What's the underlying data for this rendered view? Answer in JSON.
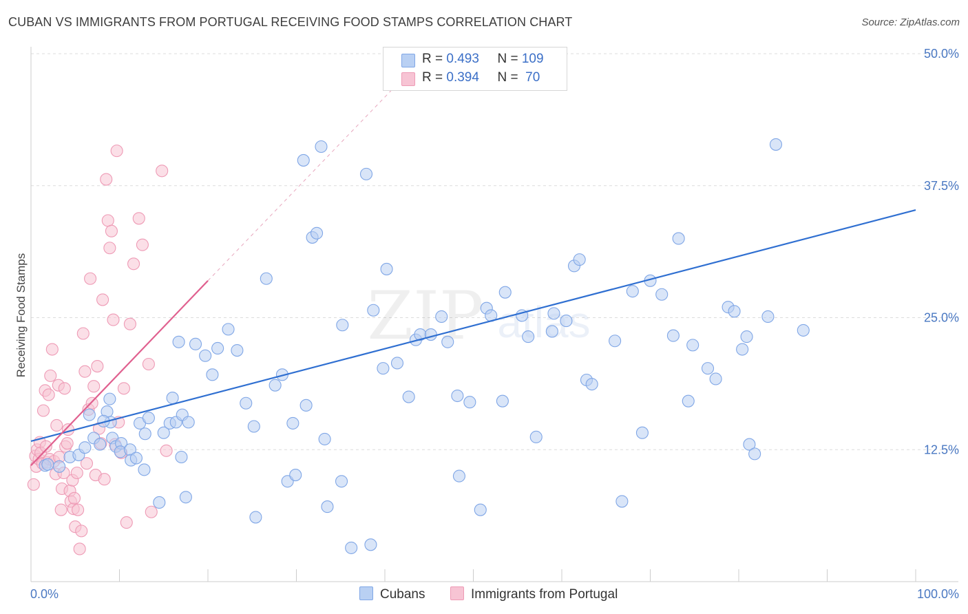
{
  "title": "CUBAN VS IMMIGRANTS FROM PORTUGAL RECEIVING FOOD STAMPS CORRELATION CHART",
  "source": "Source: ZipAtlas.com",
  "watermark": {
    "zip": "ZIP",
    "atlas": "atlas"
  },
  "legend": {
    "rows": [
      {
        "r_label": "R = ",
        "r_value": "0.493",
        "n_label": "N = ",
        "n_value": "109",
        "color": "#a8c6ef",
        "border": "#6f9be0"
      },
      {
        "r_label": "R = ",
        "r_value": "0.394",
        "n_label": "N = ",
        "n_value": " 70",
        "color": "#f6b8cc",
        "border": "#e98aa9"
      }
    ]
  },
  "bottom_legend": {
    "series1": "Cubans",
    "series2": "Immigrants from Portugal"
  },
  "chart_data": {
    "type": "scatter",
    "title": "CUBAN VS IMMIGRANTS FROM PORTUGAL RECEIVING FOOD STAMPS CORRELATION CHART",
    "xlabel": "",
    "ylabel": "Receiving Food Stamps",
    "xlim": [
      0,
      100
    ],
    "ylim": [
      0,
      50
    ],
    "x_tick_labels": [
      "0.0%",
      "100.0%"
    ],
    "y_ticks": [
      12.5,
      25.0,
      37.5,
      50.0
    ],
    "y_tick_labels": [
      "12.5%",
      "25.0%",
      "37.5%",
      "50.0%"
    ],
    "grid": true,
    "series": [
      {
        "name": "Cubans",
        "color": "#7fa6e6",
        "fill": "#b9d0f3",
        "trend": {
          "x": [
            0,
            100
          ],
          "y": [
            13.3,
            35.2
          ],
          "color": "#2f6fd1"
        },
        "points": [
          [
            1.6,
            11.0
          ],
          [
            1.9,
            11.1
          ],
          [
            3.2,
            10.9
          ],
          [
            4.4,
            11.8
          ],
          [
            5.4,
            12.0
          ],
          [
            6.1,
            12.7
          ],
          [
            7.1,
            13.6
          ],
          [
            6.6,
            15.8
          ],
          [
            7.8,
            13.0
          ],
          [
            8.6,
            16.1
          ],
          [
            9.0,
            15.1
          ],
          [
            8.9,
            17.3
          ],
          [
            9.2,
            13.6
          ],
          [
            8.2,
            15.2
          ],
          [
            9.6,
            12.8
          ],
          [
            10.2,
            13.1
          ],
          [
            10.1,
            12.3
          ],
          [
            11.2,
            12.5
          ],
          [
            11.3,
            11.5
          ],
          [
            11.9,
            11.7
          ],
          [
            12.3,
            15.0
          ],
          [
            12.8,
            10.6
          ],
          [
            12.9,
            14.0
          ],
          [
            13.3,
            15.5
          ],
          [
            14.5,
            7.5
          ],
          [
            15.0,
            14.1
          ],
          [
            15.7,
            15.0
          ],
          [
            16.0,
            17.4
          ],
          [
            16.4,
            15.1
          ],
          [
            16.7,
            22.7
          ],
          [
            17.0,
            11.8
          ],
          [
            17.1,
            15.8
          ],
          [
            17.5,
            8.0
          ],
          [
            17.8,
            15.1
          ],
          [
            18.6,
            22.5
          ],
          [
            19.7,
            21.4
          ],
          [
            20.5,
            19.6
          ],
          [
            21.1,
            22.1
          ],
          [
            22.3,
            23.9
          ],
          [
            23.3,
            21.9
          ],
          [
            24.3,
            16.9
          ],
          [
            25.2,
            14.7
          ],
          [
            25.4,
            6.1
          ],
          [
            26.6,
            28.7
          ],
          [
            27.6,
            18.6
          ],
          [
            28.4,
            19.6
          ],
          [
            29.0,
            9.5
          ],
          [
            29.6,
            15.0
          ],
          [
            29.9,
            10.1
          ],
          [
            30.8,
            39.9
          ],
          [
            31.1,
            16.7
          ],
          [
            31.8,
            32.6
          ],
          [
            32.3,
            33.0
          ],
          [
            32.8,
            41.2
          ],
          [
            33.2,
            13.5
          ],
          [
            33.5,
            7.1
          ],
          [
            35.1,
            9.5
          ],
          [
            35.2,
            24.3
          ],
          [
            36.2,
            3.2
          ],
          [
            37.9,
            38.6
          ],
          [
            38.4,
            3.5
          ],
          [
            38.7,
            25.7
          ],
          [
            39.8,
            20.2
          ],
          [
            40.2,
            29.6
          ],
          [
            41.4,
            20.7
          ],
          [
            42.7,
            17.5
          ],
          [
            43.5,
            22.9
          ],
          [
            44.0,
            23.4
          ],
          [
            45.2,
            23.4
          ],
          [
            46.4,
            25.1
          ],
          [
            47.1,
            22.7
          ],
          [
            48.2,
            17.6
          ],
          [
            48.4,
            10.0
          ],
          [
            49.6,
            17.0
          ],
          [
            50.8,
            6.8
          ],
          [
            51.5,
            25.9
          ],
          [
            52.0,
            25.2
          ],
          [
            53.3,
            17.1
          ],
          [
            53.6,
            27.4
          ],
          [
            55.5,
            25.2
          ],
          [
            56.2,
            23.2
          ],
          [
            57.1,
            13.7
          ],
          [
            58.9,
            23.7
          ],
          [
            59.1,
            25.4
          ],
          [
            60.5,
            24.7
          ],
          [
            61.4,
            29.9
          ],
          [
            62.0,
            30.5
          ],
          [
            62.8,
            19.1
          ],
          [
            63.4,
            18.7
          ],
          [
            66.0,
            22.8
          ],
          [
            66.8,
            7.6
          ],
          [
            68.0,
            27.5
          ],
          [
            69.1,
            14.1
          ],
          [
            70.0,
            28.5
          ],
          [
            71.3,
            27.2
          ],
          [
            72.6,
            23.3
          ],
          [
            73.2,
            32.5
          ],
          [
            74.3,
            17.1
          ],
          [
            74.8,
            22.4
          ],
          [
            76.5,
            20.2
          ],
          [
            77.4,
            19.2
          ],
          [
            78.8,
            26.0
          ],
          [
            79.5,
            25.6
          ],
          [
            80.4,
            22.0
          ],
          [
            80.9,
            23.2
          ],
          [
            81.2,
            13.0
          ],
          [
            81.8,
            12.1
          ],
          [
            83.3,
            25.1
          ],
          [
            84.2,
            41.4
          ],
          [
            87.3,
            23.8
          ]
        ]
      },
      {
        "name": "Immigrants from Portugal",
        "color": "#ee9ab5",
        "fill": "#f7c4d4",
        "trend": {
          "x": [
            0,
            20
          ],
          "y": [
            11.0,
            28.5
          ],
          "color": "#e0608f",
          "dashed_extension_to": [
            41.5,
            47.2
          ]
        },
        "points": [
          [
            0.3,
            9.2
          ],
          [
            0.5,
            11.9
          ],
          [
            0.6,
            10.9
          ],
          [
            0.7,
            12.5
          ],
          [
            0.9,
            11.6
          ],
          [
            1.0,
            13.2
          ],
          [
            1.1,
            12.2
          ],
          [
            1.3,
            11.2
          ],
          [
            1.4,
            16.2
          ],
          [
            1.6,
            18.1
          ],
          [
            1.7,
            12.8
          ],
          [
            1.8,
            11.3
          ],
          [
            2.0,
            17.7
          ],
          [
            2.1,
            11.6
          ],
          [
            2.2,
            19.5
          ],
          [
            2.4,
            22.0
          ],
          [
            2.6,
            11.4
          ],
          [
            2.8,
            10.2
          ],
          [
            2.9,
            14.8
          ],
          [
            3.1,
            18.6
          ],
          [
            3.2,
            11.8
          ],
          [
            3.4,
            6.8
          ],
          [
            3.5,
            8.8
          ],
          [
            3.7,
            10.3
          ],
          [
            3.8,
            18.3
          ],
          [
            3.9,
            12.8
          ],
          [
            4.1,
            13.1
          ],
          [
            4.2,
            14.4
          ],
          [
            4.4,
            8.6
          ],
          [
            4.5,
            7.6
          ],
          [
            4.7,
            9.6
          ],
          [
            4.8,
            6.9
          ],
          [
            4.9,
            7.9
          ],
          [
            5.0,
            5.2
          ],
          [
            5.2,
            10.3
          ],
          [
            5.3,
            6.8
          ],
          [
            5.5,
            3.1
          ],
          [
            5.7,
            4.8
          ],
          [
            5.9,
            23.5
          ],
          [
            6.1,
            19.9
          ],
          [
            6.3,
            11.2
          ],
          [
            6.5,
            16.3
          ],
          [
            6.7,
            28.7
          ],
          [
            6.9,
            16.9
          ],
          [
            7.1,
            18.5
          ],
          [
            7.3,
            10.1
          ],
          [
            7.5,
            20.4
          ],
          [
            7.7,
            14.5
          ],
          [
            7.9,
            13.1
          ],
          [
            8.1,
            26.7
          ],
          [
            8.3,
            9.7
          ],
          [
            8.5,
            38.1
          ],
          [
            8.7,
            34.2
          ],
          [
            8.9,
            31.6
          ],
          [
            9.1,
            33.2
          ],
          [
            9.3,
            24.8
          ],
          [
            9.5,
            13.0
          ],
          [
            9.7,
            40.8
          ],
          [
            9.9,
            15.1
          ],
          [
            10.2,
            12.2
          ],
          [
            10.5,
            18.3
          ],
          [
            10.8,
            5.6
          ],
          [
            11.2,
            24.4
          ],
          [
            11.6,
            30.1
          ],
          [
            12.2,
            34.4
          ],
          [
            12.6,
            31.9
          ],
          [
            13.3,
            20.6
          ],
          [
            13.6,
            6.6
          ],
          [
            14.8,
            38.9
          ],
          [
            15.3,
            12.4
          ]
        ]
      }
    ]
  }
}
